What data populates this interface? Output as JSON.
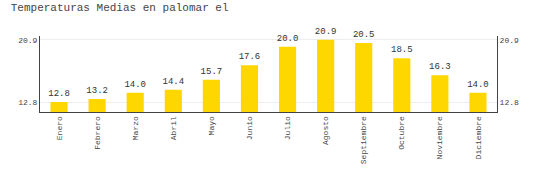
{
  "chart_data": {
    "type": "bar",
    "title": "Temperaturas Medias en palomar el",
    "categories": [
      "Enero",
      "Febrero",
      "Marzo",
      "Abril",
      "Mayo",
      "Junio",
      "Julio",
      "Agosto",
      "Septiembre",
      "Octubre",
      "Noviembre",
      "Diciembre"
    ],
    "values": [
      12.8,
      13.2,
      14.0,
      14.4,
      15.7,
      17.6,
      20.0,
      20.9,
      20.5,
      18.5,
      16.3,
      14.0
    ],
    "value_labels": [
      "12.8",
      "13.2",
      "14.0",
      "14.4",
      "15.7",
      "17.6",
      "20.0",
      "20.9",
      "20.5",
      "18.5",
      "16.3",
      "14.0"
    ],
    "data_labels": true,
    "color": "#FFD700",
    "ylim": [
      11.5,
      21.4
    ],
    "yticks": [
      12.8,
      20.9
    ],
    "y2lim": [
      11.5,
      21.4
    ],
    "y2ticks": [
      12.8,
      20.9
    ],
    "grid": true
  }
}
